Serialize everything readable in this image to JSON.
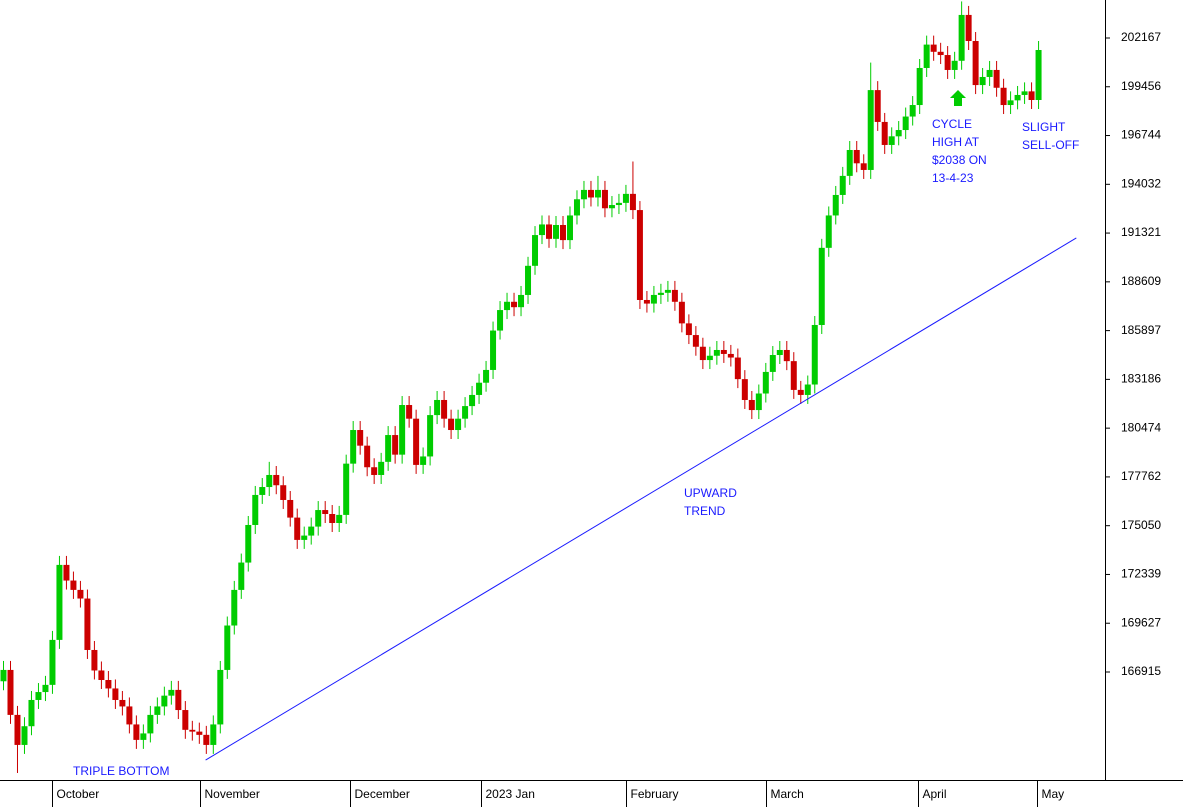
{
  "chart_data": {
    "type": "candlestick",
    "up_color": "#00cc00",
    "down_color": "#cc0000",
    "trend_color": "#1a1aff",
    "ylim": [
      160910,
      204280
    ],
    "xlim": [
      -0.5,
      157.5
    ],
    "yticks": [
      202167,
      199456,
      196744,
      194032,
      191321,
      188609,
      185897,
      183186,
      180474,
      177762,
      175050,
      172339,
      169627,
      166915
    ],
    "xticks": [
      {
        "value": 6.93,
        "label": "October"
      },
      {
        "value": 28.1,
        "label": "November"
      },
      {
        "value": 49.5,
        "label": "December"
      },
      {
        "value": 68.3,
        "label": "2023 Jan"
      },
      {
        "value": 89.0,
        "label": "February"
      },
      {
        "value": 109.0,
        "label": "March"
      },
      {
        "value": 130.8,
        "label": "April"
      },
      {
        "value": 147.8,
        "label": "May"
      }
    ],
    "open": [
      166400,
      167030,
      164530,
      162860,
      163900,
      165360,
      165800,
      166200,
      168700,
      172870,
      172000,
      171480,
      171000,
      168140,
      167000,
      166470,
      166000,
      165360,
      165000,
      164000,
      163140,
      163500,
      164530,
      165000,
      165600,
      165920,
      164800,
      163700,
      163600,
      163420,
      162860,
      164000,
      167030,
      169500,
      171480,
      173000,
      175090,
      176760,
      177200,
      177870,
      177300,
      176480,
      175500,
      174260,
      174500,
      175000,
      175920,
      175700,
      175200,
      175650,
      178500,
      180370,
      179500,
      178300,
      177870,
      178600,
      180090,
      179000,
      181760,
      181000,
      178430,
      178900,
      181200,
      182040,
      181000,
      180370,
      181000,
      181700,
      182320,
      183000,
      183710,
      185900,
      187040,
      187500,
      187200,
      187880,
      189500,
      191210,
      191800,
      191000,
      191770,
      190930,
      192300,
      193200,
      193720,
      193300,
      193720,
      192700,
      192880,
      193000,
      193500,
      192600,
      187600,
      187400,
      187880,
      188000,
      188160,
      187500,
      186300,
      185650,
      185000,
      184260,
      184500,
      184820,
      184600,
      184400,
      183200,
      182040,
      181480,
      182400,
      183600,
      184540,
      184820,
      184200,
      182600,
      182320,
      182900,
      186210,
      190500,
      192300,
      193440,
      194500,
      195940,
      195200,
      194830,
      199270,
      197500,
      196220,
      196700,
      197050,
      197800,
      198440,
      200500,
      201800,
      201400,
      201220,
      200390,
      200900,
      203450,
      202000,
      199550,
      200000,
      200390,
      199400,
      198440,
      198700,
      199000,
      199200,
      198720
    ],
    "high": [
      167530,
      167530,
      165030,
      164400,
      165860,
      166300,
      166700,
      169200,
      173370,
      173370,
      172500,
      171980,
      171500,
      168640,
      167500,
      166970,
      166500,
      165860,
      165500,
      164500,
      164000,
      165030,
      165500,
      166100,
      166420,
      166420,
      165300,
      164200,
      164100,
      163920,
      164500,
      167530,
      170000,
      171980,
      173500,
      175590,
      177260,
      177700,
      178600,
      178370,
      177800,
      176980,
      176000,
      175000,
      175500,
      176420,
      176420,
      176200,
      176150,
      179000,
      180870,
      180870,
      180000,
      178800,
      179100,
      180590,
      180590,
      182260,
      182260,
      181500,
      179400,
      181700,
      182540,
      182540,
      181500,
      181500,
      182200,
      182820,
      183500,
      184210,
      186400,
      187540,
      188000,
      188000,
      188380,
      190000,
      191710,
      192300,
      192300,
      192270,
      192270,
      192800,
      193700,
      194220,
      194220,
      194500,
      194220,
      193380,
      193500,
      194000,
      195300,
      193100,
      188100,
      188380,
      188500,
      188660,
      188660,
      188000,
      186800,
      186150,
      185500,
      185000,
      185320,
      185320,
      185100,
      184900,
      183700,
      182540,
      182900,
      184100,
      185040,
      185320,
      185320,
      184700,
      183100,
      183400,
      186710,
      191000,
      192800,
      193940,
      195000,
      196440,
      196440,
      195700,
      200800,
      199770,
      198000,
      197200,
      197550,
      198300,
      198940,
      201000,
      202300,
      202300,
      201900,
      201720,
      201400,
      204200,
      203950,
      202500,
      200500,
      200890,
      200890,
      199900,
      199200,
      199500,
      199700,
      199700,
      202000
    ],
    "low": [
      165900,
      164030,
      161300,
      162360,
      163400,
      164860,
      165300,
      165700,
      168200,
      171500,
      170980,
      170500,
      167640,
      166500,
      165970,
      165500,
      164860,
      164500,
      163500,
      162640,
      162640,
      163000,
      164030,
      164500,
      165100,
      164300,
      163200,
      163100,
      162920,
      162360,
      162360,
      163500,
      166530,
      169000,
      170980,
      172500,
      174590,
      176260,
      176700,
      176800,
      175980,
      175000,
      173760,
      173760,
      174000,
      174500,
      175200,
      174700,
      174700,
      175150,
      178000,
      179000,
      177800,
      177370,
      177370,
      178100,
      178500,
      178500,
      180500,
      177930,
      177930,
      178400,
      180700,
      180500,
      179870,
      179870,
      180500,
      181200,
      181820,
      182500,
      183210,
      185400,
      186540,
      186700,
      186700,
      187380,
      189000,
      190710,
      190500,
      190500,
      190430,
      190430,
      191800,
      192700,
      192800,
      192800,
      192200,
      192200,
      192380,
      192500,
      192100,
      187100,
      186900,
      186900,
      187380,
      187500,
      187000,
      185800,
      185150,
      184500,
      183760,
      183760,
      184000,
      184100,
      183900,
      182700,
      181540,
      180980,
      180980,
      181900,
      183100,
      184040,
      183700,
      182100,
      181820,
      181820,
      182400,
      185710,
      190000,
      191800,
      192940,
      194000,
      194700,
      194330,
      194330,
      197000,
      195720,
      195720,
      196200,
      196550,
      197300,
      197940,
      200000,
      200900,
      200720,
      199890,
      199890,
      200400,
      201500,
      199050,
      199050,
      199500,
      198900,
      197940,
      197940,
      198200,
      198500,
      198220,
      198220
    ],
    "close": [
      167030,
      164530,
      162860,
      163900,
      165360,
      165800,
      166200,
      168700,
      172870,
      172000,
      171480,
      171000,
      168140,
      167000,
      166470,
      166000,
      165360,
      165000,
      164000,
      163140,
      163500,
      164530,
      165000,
      165600,
      165920,
      164800,
      163700,
      163600,
      163420,
      162860,
      164000,
      167030,
      169500,
      171480,
      173000,
      175090,
      176760,
      177200,
      177870,
      177300,
      176480,
      175500,
      174260,
      174500,
      175000,
      175920,
      175700,
      175200,
      175650,
      178500,
      180370,
      179500,
      178300,
      177870,
      178600,
      180090,
      179000,
      181760,
      181000,
      178430,
      178900,
      181200,
      182040,
      181000,
      180370,
      181000,
      181700,
      182320,
      183000,
      183710,
      185900,
      187040,
      187500,
      187200,
      187880,
      189500,
      191210,
      191800,
      191000,
      191770,
      190930,
      192300,
      193200,
      193720,
      193300,
      193720,
      192700,
      192880,
      193000,
      193500,
      192600,
      187600,
      187400,
      187880,
      188000,
      188160,
      187500,
      186300,
      185650,
      185000,
      184260,
      184500,
      184820,
      184600,
      184400,
      183200,
      182040,
      181480,
      182400,
      183600,
      184540,
      184820,
      184200,
      182600,
      182320,
      182900,
      186210,
      190500,
      192300,
      193440,
      194500,
      195940,
      195200,
      194830,
      199270,
      197500,
      196220,
      196700,
      197050,
      197800,
      198440,
      200500,
      201800,
      201400,
      201220,
      200390,
      200900,
      203450,
      202000,
      199550,
      200000,
      200390,
      199400,
      198440,
      198700,
      199000,
      199200,
      198720,
      201500
    ],
    "trend_line": {
      "x": [
        28.9,
        153.4
      ],
      "values": [
        162020,
        191050
      ]
    },
    "annotations": [
      {
        "lines": [
          "TRIPLE BOTTOM"
        ]
      },
      {
        "lines": [
          "UPWARD",
          "TREND"
        ]
      },
      {
        "lines": [
          "CYCLE",
          "HIGH AT",
          "$2038 ON",
          "13-4-23"
        ]
      },
      {
        "lines": [
          "SLIGHT",
          "SELL-OFF"
        ]
      }
    ]
  }
}
